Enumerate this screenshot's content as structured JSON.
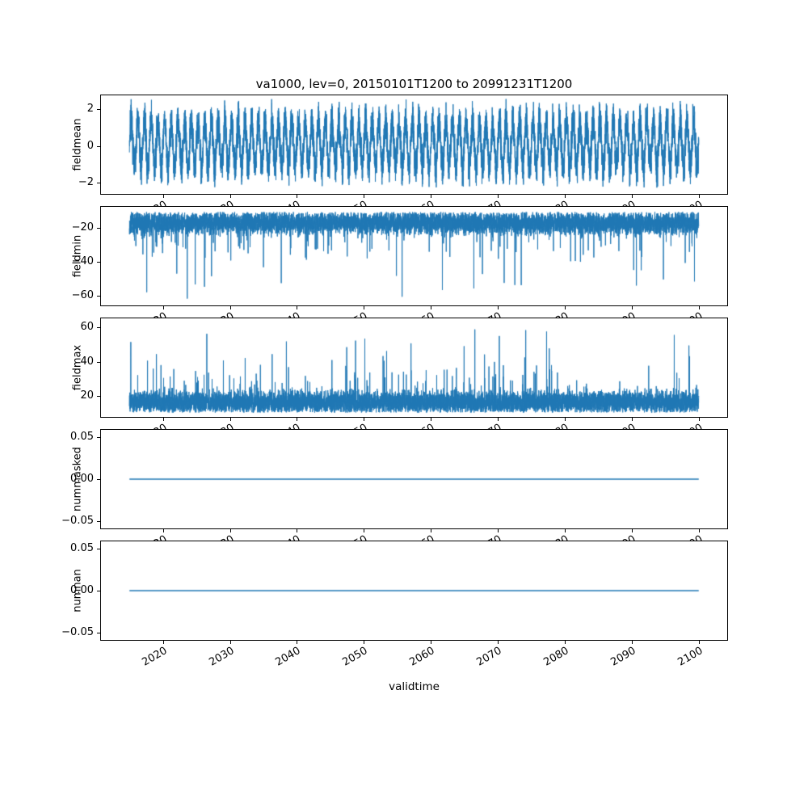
{
  "figure": {
    "background": "#ffffff",
    "axes_color": "#000000",
    "line_color": "#1f77b4"
  },
  "chart_data": {
    "type": "line",
    "title": "va1000, lev=0, 20150101T1200 to 20991231T1200",
    "xlabel": "validtime",
    "grid": false,
    "legend": "none",
    "x_start": 2015.0,
    "x_end": 2100.0,
    "xlim": [
      2010.75,
      2104.25
    ],
    "x_tick_rotation_deg": 30,
    "points_per_series": 8000,
    "line_color": "#1f77b4",
    "x_ticks": [
      {
        "value": 2020,
        "label": "2020"
      },
      {
        "value": 2030,
        "label": "2030"
      },
      {
        "value": 2040,
        "label": "2040"
      },
      {
        "value": 2050,
        "label": "2050"
      },
      {
        "value": 2060,
        "label": "2060"
      },
      {
        "value": 2070,
        "label": "2070"
      },
      {
        "value": 2080,
        "label": "2080"
      },
      {
        "value": 2090,
        "label": "2090"
      },
      {
        "value": 2100,
        "label": "2100"
      }
    ],
    "subplots": [
      {
        "ylabel": "fieldmean",
        "ylim": [
          -2.6,
          2.75
        ],
        "y_ticks": [
          {
            "value": 2,
            "label": "2"
          },
          {
            "value": 0,
            "label": "0"
          },
          {
            "value": -2,
            "label": "−2"
          }
        ],
        "seed": 7,
        "pattern": {
          "kind": "seasonal-noise",
          "base": 0.1,
          "amplitude": 1.25,
          "cycles_per_year": 1,
          "noise_sd": 0.5,
          "clamp": [
            -2.3,
            2.55
          ],
          "clamp_jitter": 0.3
        },
        "summary": "annual oscillation with noise, range approx -2.2 to 2.5"
      },
      {
        "ylabel": "fieldmin",
        "ylim": [
          -65.5,
          -7.5
        ],
        "y_ticks": [
          {
            "value": -20,
            "label": "−20"
          },
          {
            "value": -40,
            "label": "−40"
          },
          {
            "value": -60,
            "label": "−60"
          }
        ],
        "seed": 13,
        "pattern": {
          "kind": "band-spikes",
          "base": -17,
          "noise_sd": 3.2,
          "direction": -1,
          "medium_prob": 0.015,
          "medium_extra": [
            6,
            18
          ],
          "spike_prob": 0.0045,
          "spike_range": [
            -62,
            -36
          ],
          "clamp": [
            -62.5,
            -10.5
          ],
          "clamp_jitter": 1.5
        },
        "summary": "dense band -11 to -28 with downward spikes to -62"
      },
      {
        "ylabel": "fieldmax",
        "ylim": [
          8,
          65
        ],
        "y_ticks": [
          {
            "value": 60,
            "label": "60"
          },
          {
            "value": 40,
            "label": "40"
          },
          {
            "value": 20,
            "label": "20"
          }
        ],
        "seed": 21,
        "pattern": {
          "kind": "band-spikes",
          "base": 16.5,
          "noise_sd": 3.2,
          "direction": 1,
          "medium_prob": 0.015,
          "medium_extra": [
            6,
            18
          ],
          "spike_prob": 0.0045,
          "spike_range": [
            35,
            59
          ],
          "clamp": [
            10.5,
            59.5
          ],
          "clamp_jitter": 1.5
        },
        "summary": "dense band 10 to 27 with upward spikes to 59"
      },
      {
        "ylabel": "nummasked",
        "ylim": [
          -0.0583,
          0.0583
        ],
        "y_ticks": [
          {
            "value": 0.05,
            "label": "0.05"
          },
          {
            "value": 0.0,
            "label": "0.00"
          },
          {
            "value": -0.05,
            "label": "−0.05"
          }
        ],
        "seed": 1,
        "pattern": {
          "kind": "constant",
          "value": 0.0
        },
        "summary": "constant 0 over entire period"
      },
      {
        "ylabel": "numnan",
        "ylim": [
          -0.0583,
          0.0583
        ],
        "y_ticks": [
          {
            "value": 0.05,
            "label": "0.05"
          },
          {
            "value": 0.0,
            "label": "0.00"
          },
          {
            "value": -0.05,
            "label": "−0.05"
          }
        ],
        "seed": 2,
        "pattern": {
          "kind": "constant",
          "value": 0.0
        },
        "summary": "constant 0 over entire period"
      }
    ]
  }
}
